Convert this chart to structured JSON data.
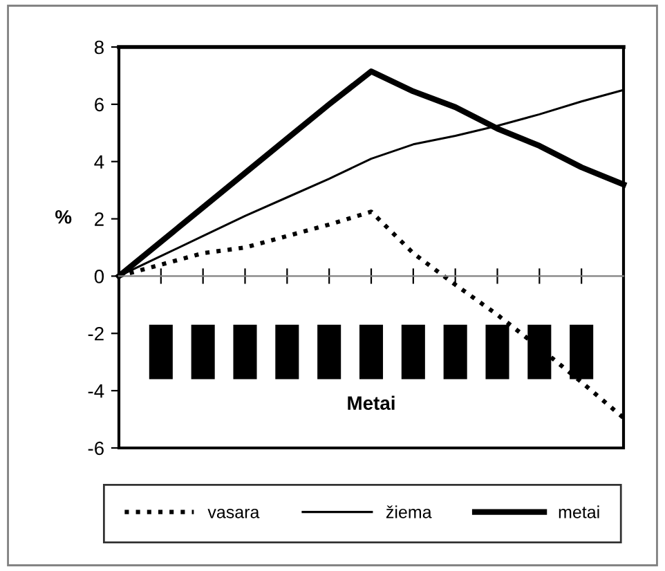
{
  "chart_data": {
    "type": "line",
    "xlabel": "Metai",
    "ylabel": "%",
    "categories": [
      null,
      null,
      null,
      null,
      null,
      null,
      null,
      null,
      null,
      null,
      null,
      null,
      null
    ],
    "series": [
      {
        "name": "vasara",
        "color": "#000000",
        "line_style": "dotted",
        "values": [
          0,
          0.4,
          0.8,
          1.0,
          1.4,
          1.8,
          2.25,
          0.8,
          -0.3,
          -1.35,
          -2.5,
          -3.7,
          -4.95
        ]
      },
      {
        "name": "žiema",
        "color": "#000000",
        "line_style": "solid",
        "values": [
          0,
          0.7,
          1.4,
          2.1,
          2.75,
          3.4,
          4.1,
          4.6,
          4.9,
          5.25,
          5.65,
          6.1,
          6.5
        ]
      },
      {
        "name": "metai",
        "color": "#000000",
        "line_style": "solid",
        "values": [
          0,
          1.2,
          2.4,
          3.6,
          4.8,
          6.0,
          7.15,
          6.45,
          5.9,
          5.15,
          4.55,
          3.8,
          3.2
        ]
      }
    ],
    "ylim": [
      -6,
      8
    ],
    "yticks": [
      -6,
      -4,
      -2,
      0,
      2,
      4,
      6,
      8
    ],
    "legend": "bottom",
    "marker": "none",
    "tick_labels": "y"
  }
}
